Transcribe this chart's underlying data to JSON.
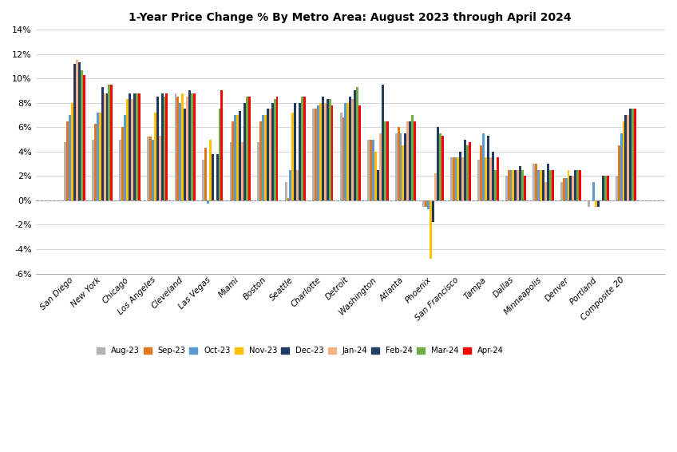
{
  "title": "1-Year Price Change % By Metro Area: August 2023 through April 2024",
  "categories": [
    "San Diego",
    "New York",
    "Chicago",
    "Los Angeles",
    "Cleveland",
    "Las Vegas",
    "Miami",
    "Boston",
    "Seattle",
    "Charlotte",
    "Detroit",
    "Washington",
    "Atlanta",
    "Phoenix",
    "San Francisco",
    "Tampa",
    "Dallas",
    "Minneapolis",
    "Denver",
    "Portland",
    "Composite 20"
  ],
  "series_labels": [
    "Aug-23",
    "Sep-23",
    "Oct-23",
    "Nov-23",
    "Dec-23",
    "Jan-24",
    "Feb-24",
    "Mar-24",
    "Apr-24"
  ],
  "series_colors": [
    "#b3b3b3",
    "#e07820",
    "#5b9bd5",
    "#ffc000",
    "#1f3864",
    "#f4b183",
    "#243f60",
    "#70ad47",
    "#ff0000"
  ],
  "city_data": {
    "San Diego": [
      4.8,
      6.5,
      7.0,
      8.0,
      11.2,
      11.5,
      11.3,
      10.7,
      10.3
    ],
    "New York": [
      5.0,
      6.3,
      7.2,
      7.2,
      9.3,
      8.8,
      8.8,
      9.5,
      9.5
    ],
    "Chicago": [
      5.0,
      6.0,
      7.0,
      8.3,
      8.8,
      8.3,
      8.8,
      8.8,
      8.8
    ],
    "Los Angeles": [
      5.2,
      5.2,
      5.0,
      7.2,
      8.5,
      5.3,
      8.8,
      8.5,
      8.8
    ],
    "Cleveland": [
      8.8,
      8.5,
      8.0,
      8.8,
      7.5,
      8.5,
      9.0,
      8.8,
      8.8
    ],
    "Las Vegas": [
      3.3,
      4.3,
      -0.3,
      5.0,
      3.8,
      0.0,
      3.8,
      7.5,
      9.0
    ],
    "Miami": [
      4.8,
      6.5,
      7.0,
      7.0,
      7.3,
      4.8,
      8.0,
      8.5,
      8.5
    ],
    "Boston": [
      4.8,
      6.5,
      7.0,
      7.0,
      7.5,
      7.5,
      8.0,
      8.3,
      8.5
    ],
    "Seattle": [
      1.5,
      0.2,
      2.5,
      7.2,
      8.0,
      2.5,
      8.0,
      8.5,
      8.5
    ],
    "Charlotte": [
      7.5,
      7.5,
      7.8,
      8.0,
      8.5,
      8.0,
      8.3,
      8.3,
      7.8
    ],
    "Detroit": [
      7.2,
      6.8,
      8.0,
      8.0,
      8.5,
      8.3,
      9.0,
      9.3,
      7.8
    ],
    "Washington": [
      5.0,
      5.0,
      5.0,
      4.0,
      2.5,
      5.5,
      9.5,
      6.5,
      6.5
    ],
    "Atlanta": [
      5.5,
      6.0,
      5.5,
      4.5,
      5.5,
      6.5,
      6.5,
      7.0,
      6.5
    ],
    "Phoenix": [
      -0.5,
      -0.5,
      -0.7,
      -4.8,
      -1.8,
      2.2,
      6.0,
      5.5,
      5.3
    ],
    "San Francisco": [
      3.5,
      3.5,
      3.5,
      3.5,
      4.0,
      3.5,
      5.0,
      4.5,
      4.8
    ],
    "Tampa": [
      3.3,
      4.5,
      5.5,
      3.5,
      5.3,
      3.5,
      4.0,
      2.5,
      3.5
    ],
    "Dallas": [
      2.0,
      2.5,
      2.5,
      2.5,
      2.5,
      2.5,
      2.8,
      2.5,
      2.0
    ],
    "Minneapolis": [
      3.0,
      3.0,
      2.5,
      2.5,
      2.5,
      1.5,
      3.0,
      2.5,
      2.5
    ],
    "Denver": [
      1.5,
      1.8,
      1.8,
      2.5,
      2.0,
      2.0,
      2.5,
      2.5,
      2.5
    ],
    "Portland": [
      -0.5,
      0.0,
      1.5,
      -0.5,
      -0.5,
      0.0,
      2.0,
      2.0,
      2.0
    ],
    "Composite 20": [
      2.0,
      4.5,
      5.5,
      6.5,
      7.0,
      7.0,
      7.5,
      7.5,
      7.5
    ]
  },
  "ylim": [
    -6,
    14
  ],
  "yticks": [
    -6,
    -4,
    -2,
    0,
    2,
    4,
    6,
    8,
    10,
    12,
    14
  ],
  "figsize": [
    8.48,
    5.66
  ],
  "dpi": 100
}
